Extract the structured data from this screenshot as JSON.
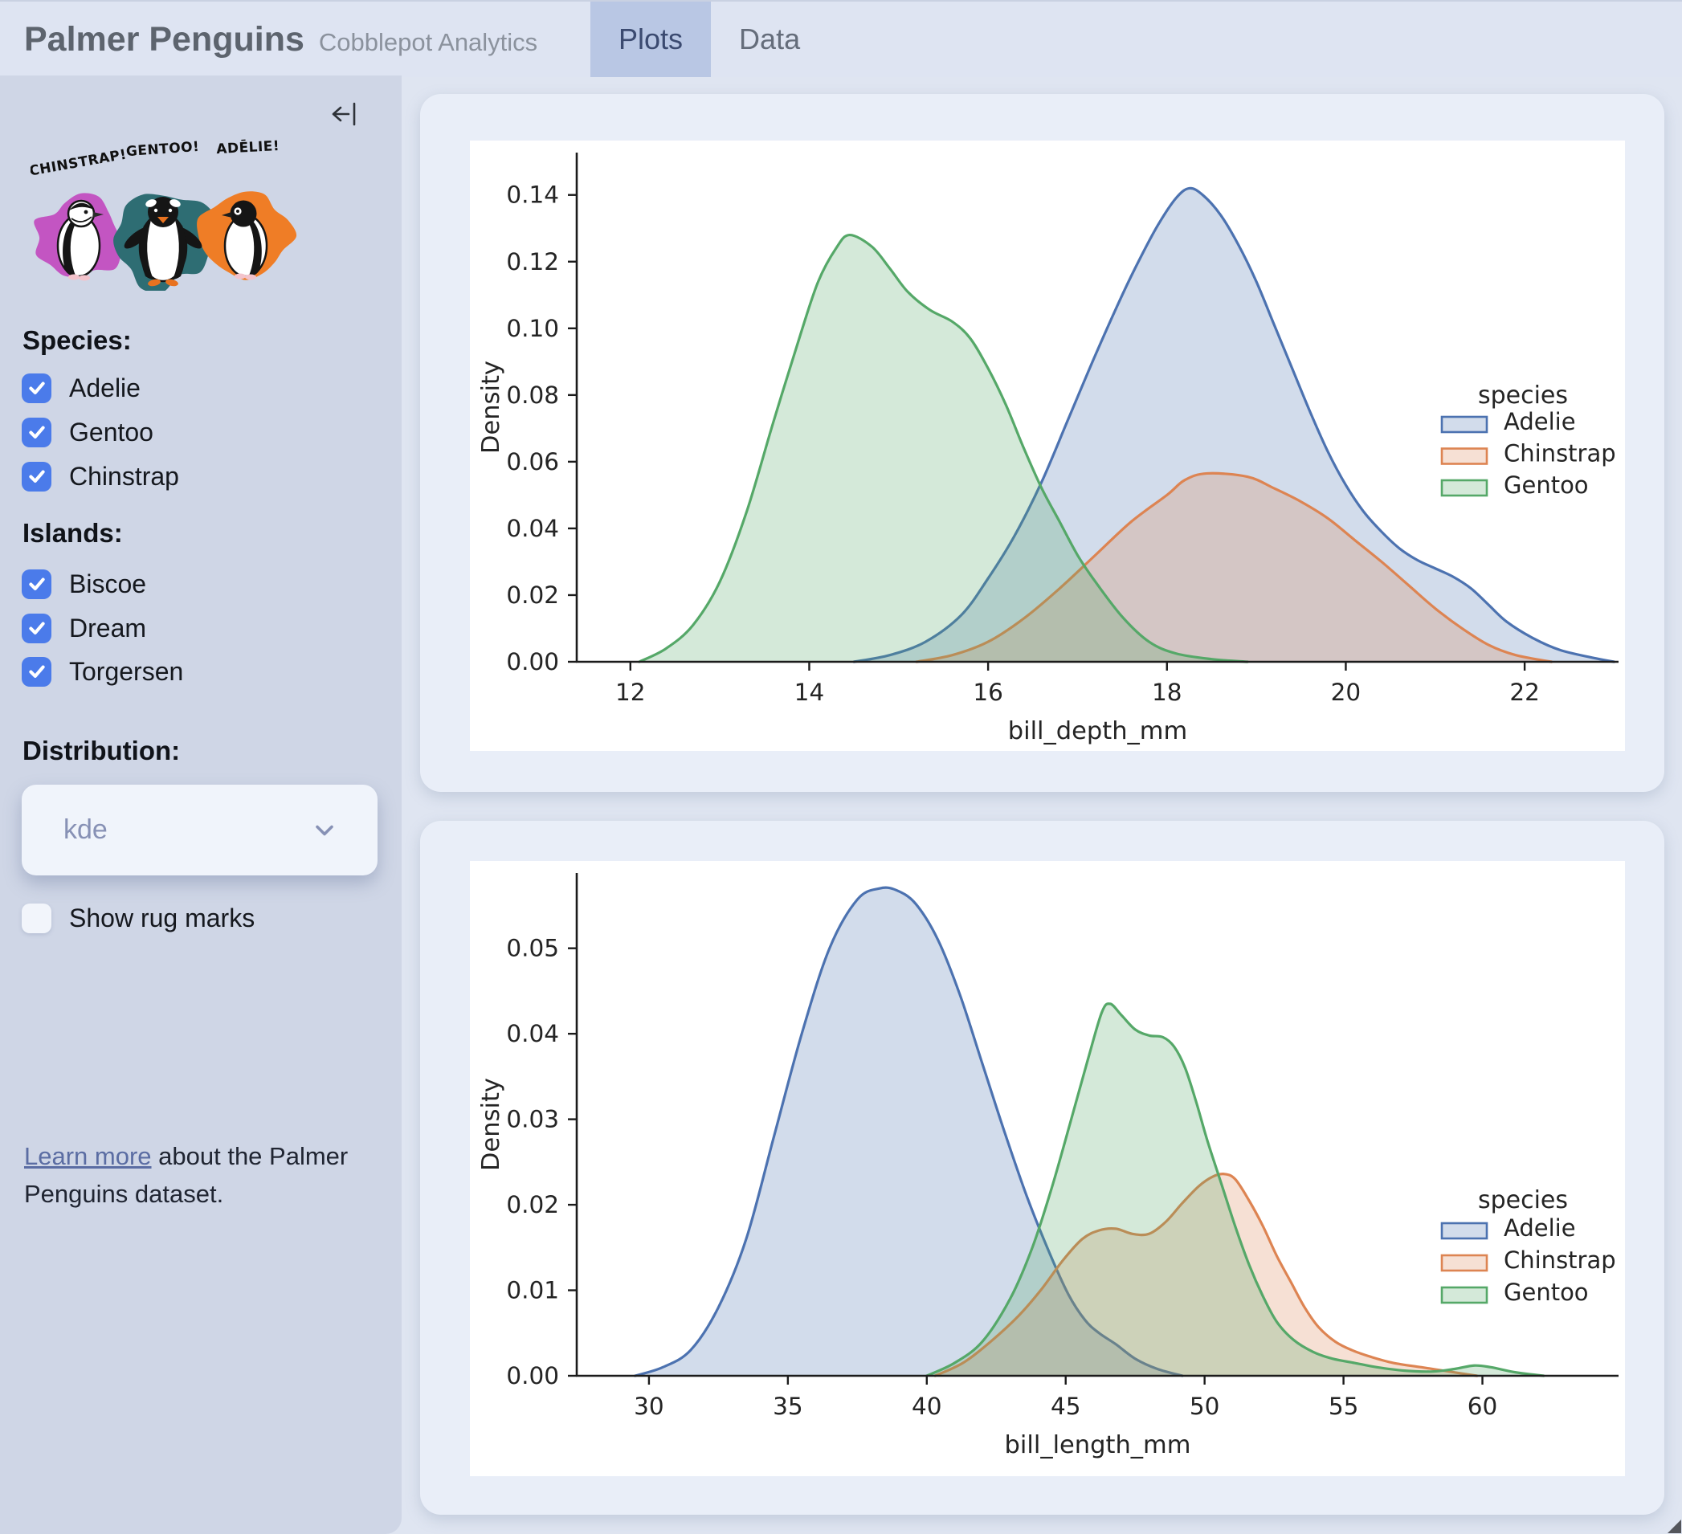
{
  "header": {
    "title": "Palmer Penguins",
    "subtitle": "Cobblepot Analytics",
    "tabs": [
      {
        "label": "Plots",
        "active": true
      },
      {
        "label": "Data",
        "active": false
      }
    ]
  },
  "sidebar": {
    "artwork": {
      "labels": [
        "CHINSTRAP!",
        "GENTOO!",
        "ADĒLIE!"
      ],
      "splash_colors": [
        "#c355c2",
        "#2e6d73",
        "#ef7d26"
      ]
    },
    "species": {
      "heading": "Species:",
      "options": [
        {
          "label": "Adelie",
          "checked": true
        },
        {
          "label": "Gentoo",
          "checked": true
        },
        {
          "label": "Chinstrap",
          "checked": true
        }
      ]
    },
    "islands": {
      "heading": "Islands:",
      "options": [
        {
          "label": "Biscoe",
          "checked": true
        },
        {
          "label": "Dream",
          "checked": true
        },
        {
          "label": "Torgersen",
          "checked": true
        }
      ]
    },
    "distribution": {
      "heading": "Distribution:",
      "value": "kde"
    },
    "rug": {
      "label": "Show rug marks",
      "checked": false
    },
    "footer": {
      "link": "Learn more",
      "rest": " about the Palmer Penguins dataset."
    }
  },
  "theme": {
    "accent": "#4b7bea",
    "tab_active_bg": "#b9c7e4",
    "sidebar_bg": "#cfd6e6",
    "page_bg": "#dfe5f1",
    "card_bg": "#e9eef8",
    "series_blue": "#4C72B0",
    "series_orange": "#DD8452",
    "series_green": "#55A868"
  },
  "chart_data": [
    {
      "type": "area",
      "subtype": "kde",
      "title": "",
      "xlabel": "bill_depth_mm",
      "ylabel": "Density",
      "legend_title": "species",
      "legend_position": "center right",
      "grid": false,
      "x_ticks": [
        12,
        14,
        16,
        18,
        20,
        22
      ],
      "y_ticks": [
        0.0,
        0.02,
        0.04,
        0.06,
        0.08,
        0.1,
        0.12,
        0.14
      ],
      "xlim": [
        11.4,
        23.05
      ],
      "ylim": [
        0,
        0.1527
      ],
      "series": [
        {
          "name": "Adelie",
          "color": "#4C72B0",
          "points": [
            [
              14.5,
              0
            ],
            [
              14.9,
              0.002
            ],
            [
              15.3,
              0.006
            ],
            [
              15.7,
              0.014
            ],
            [
              16.0,
              0.025
            ],
            [
              16.3,
              0.038
            ],
            [
              16.6,
              0.054
            ],
            [
              16.9,
              0.073
            ],
            [
              17.2,
              0.092
            ],
            [
              17.5,
              0.11
            ],
            [
              17.7,
              0.121
            ],
            [
              17.9,
              0.131
            ],
            [
              18.1,
              0.139
            ],
            [
              18.25,
              0.142
            ],
            [
              18.4,
              0.14
            ],
            [
              18.6,
              0.134
            ],
            [
              18.8,
              0.125
            ],
            [
              19.0,
              0.114
            ],
            [
              19.2,
              0.101
            ],
            [
              19.4,
              0.088
            ],
            [
              19.6,
              0.075
            ],
            [
              19.8,
              0.063
            ],
            [
              20.0,
              0.053
            ],
            [
              20.2,
              0.045
            ],
            [
              20.4,
              0.039
            ],
            [
              20.6,
              0.034
            ],
            [
              20.8,
              0.0305
            ],
            [
              21.0,
              0.028
            ],
            [
              21.2,
              0.0255
            ],
            [
              21.4,
              0.022
            ],
            [
              21.6,
              0.017
            ],
            [
              21.8,
              0.012
            ],
            [
              22.1,
              0.007
            ],
            [
              22.4,
              0.0035
            ],
            [
              22.8,
              0.001
            ],
            [
              23.0,
              0
            ]
          ]
        },
        {
          "name": "Chinstrap",
          "color": "#DD8452",
          "points": [
            [
              15.2,
              0
            ],
            [
              15.6,
              0.002
            ],
            [
              16.0,
              0.006
            ],
            [
              16.4,
              0.013
            ],
            [
              16.8,
              0.022
            ],
            [
              17.2,
              0.032
            ],
            [
              17.6,
              0.042
            ],
            [
              18.0,
              0.05
            ],
            [
              18.2,
              0.0545
            ],
            [
              18.45,
              0.0565
            ],
            [
              18.9,
              0.0555
            ],
            [
              19.2,
              0.052
            ],
            [
              19.5,
              0.048
            ],
            [
              19.8,
              0.043
            ],
            [
              20.1,
              0.0365
            ],
            [
              20.4,
              0.03
            ],
            [
              20.7,
              0.023
            ],
            [
              21.0,
              0.016
            ],
            [
              21.3,
              0.01
            ],
            [
              21.6,
              0.005
            ],
            [
              21.9,
              0.002
            ],
            [
              22.3,
              0
            ]
          ]
        },
        {
          "name": "Gentoo",
          "color": "#55A868",
          "points": [
            [
              12.1,
              0
            ],
            [
              12.4,
              0.004
            ],
            [
              12.7,
              0.011
            ],
            [
              13.0,
              0.024
            ],
            [
              13.3,
              0.045
            ],
            [
              13.6,
              0.072
            ],
            [
              13.9,
              0.098
            ],
            [
              14.1,
              0.114
            ],
            [
              14.3,
              0.124
            ],
            [
              14.45,
              0.128
            ],
            [
              14.7,
              0.1245
            ],
            [
              14.9,
              0.118
            ],
            [
              15.1,
              0.111
            ],
            [
              15.35,
              0.1055
            ],
            [
              15.6,
              0.102
            ],
            [
              15.8,
              0.097
            ],
            [
              16.0,
              0.088
            ],
            [
              16.2,
              0.077
            ],
            [
              16.4,
              0.064
            ],
            [
              16.6,
              0.052
            ],
            [
              16.8,
              0.042
            ],
            [
              17.0,
              0.032
            ],
            [
              17.2,
              0.024
            ],
            [
              17.5,
              0.0135
            ],
            [
              17.8,
              0.006
            ],
            [
              18.1,
              0.0025
            ],
            [
              18.5,
              0.0008
            ],
            [
              18.9,
              0
            ]
          ]
        }
      ]
    },
    {
      "type": "area",
      "subtype": "kde",
      "title": "",
      "xlabel": "bill_length_mm",
      "ylabel": "Density",
      "legend_title": "species",
      "legend_position": "center right",
      "grid": false,
      "x_ticks": [
        30,
        35,
        40,
        45,
        50,
        55,
        60
      ],
      "y_ticks": [
        0.0,
        0.01,
        0.02,
        0.03,
        0.04,
        0.05
      ],
      "xlim": [
        27.4,
        64.9
      ],
      "ylim": [
        0,
        0.0588
      ],
      "series": [
        {
          "name": "Adelie",
          "color": "#4C72B0",
          "points": [
            [
              29.5,
              0
            ],
            [
              30.5,
              0.001
            ],
            [
              31.5,
              0.003
            ],
            [
              32.5,
              0.008
            ],
            [
              33.5,
              0.016
            ],
            [
              34.5,
              0.028
            ],
            [
              35.5,
              0.04
            ],
            [
              36.5,
              0.05
            ],
            [
              37.5,
              0.0557
            ],
            [
              38.3,
              0.057
            ],
            [
              38.9,
              0.0568
            ],
            [
              39.6,
              0.0552
            ],
            [
              40.4,
              0.051
            ],
            [
              41.2,
              0.0445
            ],
            [
              42.0,
              0.0365
            ],
            [
              42.8,
              0.0285
            ],
            [
              43.6,
              0.021
            ],
            [
              44.4,
              0.0145
            ],
            [
              45.1,
              0.0095
            ],
            [
              45.7,
              0.0065
            ],
            [
              46.2,
              0.005
            ],
            [
              46.8,
              0.0037
            ],
            [
              47.5,
              0.002
            ],
            [
              48.3,
              0.0008
            ],
            [
              49.2,
              0
            ]
          ]
        },
        {
          "name": "Chinstrap",
          "color": "#DD8452",
          "points": [
            [
              40.3,
              0
            ],
            [
              41.3,
              0.0015
            ],
            [
              42.3,
              0.004
            ],
            [
              43.3,
              0.007
            ],
            [
              44.1,
              0.01
            ],
            [
              44.9,
              0.0135
            ],
            [
              45.6,
              0.016
            ],
            [
              46.2,
              0.017
            ],
            [
              46.8,
              0.0172
            ],
            [
              47.4,
              0.0166
            ],
            [
              48.0,
              0.0166
            ],
            [
              48.6,
              0.018
            ],
            [
              49.2,
              0.0202
            ],
            [
              49.8,
              0.0222
            ],
            [
              50.3,
              0.0233
            ],
            [
              50.7,
              0.0236
            ],
            [
              51.1,
              0.023
            ],
            [
              51.6,
              0.0205
            ],
            [
              52.1,
              0.0175
            ],
            [
              52.6,
              0.014
            ],
            [
              53.1,
              0.011
            ],
            [
              53.6,
              0.008
            ],
            [
              54.1,
              0.0057
            ],
            [
              54.7,
              0.004
            ],
            [
              55.3,
              0.003
            ],
            [
              56.0,
              0.0022
            ],
            [
              56.8,
              0.0015
            ],
            [
              57.8,
              0.001
            ],
            [
              58.8,
              0.0005
            ],
            [
              59.8,
              0
            ]
          ]
        },
        {
          "name": "Gentoo",
          "color": "#55A868",
          "points": [
            [
              40.0,
              0
            ],
            [
              41.0,
              0.0015
            ],
            [
              42.0,
              0.004
            ],
            [
              43.0,
              0.009
            ],
            [
              43.8,
              0.015
            ],
            [
              44.5,
              0.022
            ],
            [
              45.2,
              0.03
            ],
            [
              45.8,
              0.037
            ],
            [
              46.3,
              0.0425
            ],
            [
              46.6,
              0.0435
            ],
            [
              47.0,
              0.0422
            ],
            [
              47.5,
              0.0405
            ],
            [
              48.0,
              0.0398
            ],
            [
              48.5,
              0.0396
            ],
            [
              48.9,
              0.0385
            ],
            [
              49.3,
              0.036
            ],
            [
              49.7,
              0.032
            ],
            [
              50.1,
              0.0275
            ],
            [
              50.6,
              0.0225
            ],
            [
              51.1,
              0.0175
            ],
            [
              51.6,
              0.013
            ],
            [
              52.1,
              0.0093
            ],
            [
              52.6,
              0.0063
            ],
            [
              53.2,
              0.0042
            ],
            [
              53.9,
              0.0028
            ],
            [
              54.6,
              0.002
            ],
            [
              55.4,
              0.0015
            ],
            [
              56.2,
              0.001
            ],
            [
              57.2,
              0.0006
            ],
            [
              58.2,
              0.0005
            ],
            [
              59.0,
              0.0008
            ],
            [
              59.7,
              0.0012
            ],
            [
              60.3,
              0.001
            ],
            [
              61.2,
              0.0004
            ],
            [
              62.2,
              0
            ]
          ]
        }
      ]
    }
  ]
}
